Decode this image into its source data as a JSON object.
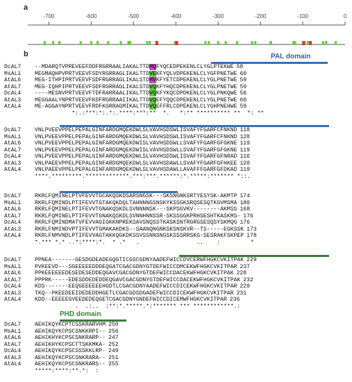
{
  "figure": {
    "panel_a_label": "a",
    "panel_b_label": "b",
    "scale": {
      "ticks": [
        "-700",
        "-600",
        "-500",
        "-400",
        "-300",
        "-200",
        "-100",
        "0"
      ],
      "tick_values": [
        -700,
        -600,
        -500,
        -400,
        -300,
        -200,
        -100,
        0
      ],
      "range": [
        -750,
        0
      ],
      "green_marks": [
        -710,
        -690,
        -675,
        -625,
        -600,
        -585,
        -560,
        -530,
        -512,
        -508,
        -468,
        -462,
        -402,
        -330,
        -322,
        -300,
        -282,
        -255,
        -220,
        -212,
        -176,
        -175,
        -122,
        -118,
        -95,
        -88,
        -52,
        -45,
        -22
      ],
      "red_marks": [
        -445,
        -398,
        -98,
        -82
      ],
      "colors": {
        "green": "#66cc44",
        "red": "#e03030",
        "axis": "#555555"
      }
    },
    "pal_domain_label": "PAL domain",
    "phd_domain_label": "PHD domain",
    "colors": {
      "pal_bar": "#3a6fb5",
      "phd_bar": "#3d7a3a",
      "phd_label": "#2e8b2e",
      "pal_label": "#2f62a8"
    },
    "blocks": [
      {
        "rows": [
          {
            "name": "DcAL7",
            "seq": "--MDARQTVPREVEEFDDFRGRRAALIAKALTTD",
            "hl": "MQ",
            "seq2": "FYQCEDPEKENLCLYGLPTEKWE",
            "num": "58",
            "hltype": "mag"
          },
          {
            "name": "MsAL1",
            "seq": "MEGMAQHPVPRTVEEVFSDYRGRRAGLIKALTTD",
            "hl": "VE",
            "seq2": "KFYQLVDPEKENLCLYGFPNETWE",
            "num": "60",
            "hltype": "grn"
          },
          {
            "name": "AtAL6",
            "seq": "MEG-ITHPIPRTVEEVFSDFRGRRAGLIKALSTD",
            "hl": "MV",
            "seq2": "KFYETCDPEKENLCLYGLPNETWE",
            "num": "59",
            "hltype": "mag"
          },
          {
            "name": "AtAL7",
            "seq": "MEG-IQHPIPRTVEEVFSDFRGRRAGLIKALSTD",
            "hl": "VQ",
            "seq2": "KFYHQCDPEKENLCLYGLPNETWE",
            "num": "59",
            "hltype": "grn"
          },
          {
            "name": "DcAL4",
            "seq": "----MESNVPRTVEEVFTDFRARRAALIKALTTD",
            "hl": "VQ",
            "seq2": "KFYKQCDPDKENLCLYGLPNKQWE",
            "num": "56",
            "hltype": "grn"
          },
          {
            "name": "AtAL3",
            "seq": "MEGGAALYNPRTVEEVFKDFRGRRAAIIKALTTD",
            "hl": "VQ",
            "seq2": "EFYQQCDPEKENLCLYGLPNETWE",
            "num": "60",
            "hltype": "grn"
          },
          {
            "name": "AtAL4",
            "seq": "ME-AGGAYNPRTVEEVFRDFKGRRAGMIKALTTD",
            "hl": "VQ",
            "seq2": "EFFRLCDPEKENLCLYGHPNEHWE",
            "num": "59",
            "hltype": "grn"
          }
        ],
        "consensus": "           *:.:***:*:.*:.****:***:**  *.   *:** ********** **  *: **"
      },
      {
        "rows": [
          {
            "name": "DcAL7",
            "seq": "VNLPVEEVPPELPEPALGINFARDGMQEKDWLSLVAVHSDSWLISVAFYFGARFCFNKND",
            "num": "118"
          },
          {
            "name": "MsAL1",
            "seq": "VNLPVEEVPPELPEPALGINFARDGMQEKDWLSLVAVHSDSWLISVAFYFGARFCFNKND",
            "num": "120"
          },
          {
            "name": "AtAL6",
            "seq": "VNLPVEEVPPELPEPALGINFARDGMQEKDWISLVAVHSDSWLLSVAFYFGARFGFGKNE",
            "num": "119"
          },
          {
            "name": "AtAL7",
            "seq": "VNLPVEEVPPELPEPALGINFARDGMQEKDWISLVAVHSDSWLLSVAFYFGARFGFGKNE",
            "num": "119"
          },
          {
            "name": "DcAL4",
            "seq": "VNLPVEEVPPELPEPALGINFARDGMQEKDWLSLVAVHSDSWLISVAFYFGARFGFNRAD",
            "num": "116"
          },
          {
            "name": "AtAL3",
            "seq": "VNLPAEEVPPELPEPALGINFARDGMQEKDWLSLVAVHSDAWLLSVAFYFGARFGFHKEE",
            "num": "120"
          },
          {
            "name": "AtAL4",
            "seq": "VNLPAEEVPPELPEPALGINFARDGMQEKDWLSLVAVHSDAWLLAVAFFFGARFGFDKAD",
            "num": "119"
          }
        ],
        "consensus": "****.*********.*************.***:***.******:*.*****:******* *::."
      },
      {
        "rows": [
          {
            "name": "DcAL7",
            "seq": "RKRLFQMINELPTVFEVVTGCAKQSKDSARSNGSK---SKSNGNKSRTYESYSK-AKMTP",
            "num": "174"
          },
          {
            "name": "MsAL1",
            "seq": "RKRLFQMINDLPTIFEVVTGTAKQKDQLTAHNNNGSNSKYKSSGKSRQSESQTKGVMSMA",
            "num": "180"
          },
          {
            "name": "AtAL6",
            "seq": "RKRLFQMINELPTIFEVVTGNAKQSKDLSVNNNNSK---SKPSGVKV--------AKMSS",
            "num": "168"
          },
          {
            "name": "AtAL7",
            "seq": "RKRLFQMINELPTIFEVVTGNAKQSKDLSVNNHNNSSR-SKSSGGKPRHSESHTKASKMS-",
            "num": "176"
          },
          {
            "name": "DcAL4",
            "seq": "RKRLFQMINDMATVFEVVAGIGKKNPREKSAVSNQSSTKASKSNTRGRGSESQSYSKMQG",
            "num": "176"
          },
          {
            "name": "AtAL3",
            "seq": "RKRLFNMINDVPTIFEVVTGMAKAKDKS--SAANQNGNKSKSNSKVR--TS-----EGKSSK",
            "num": "173"
          },
          {
            "name": "AtAL4",
            "seq": "RKRLFNMVNDLPTIFEVVAGTAKKQGKDKSSVSSNNSNGSKSSSRRSKG-SESRAKFSKPEP",
            "num": "178"
          }
        ],
        "consensus": "*.*** *.* ..*:****:*.  * .*   .                 ..    :         *"
      },
      {
        "rows": [
          {
            "name": "DcAL7",
            "seq": "PPNEA-------GESDGDEADEGQGTICGSCGDNYAADEFWICCDVCERWFHGKCVKITPAK",
            "num": "229"
          },
          {
            "name": "MsAL1",
            "seq": "PVKEEVD---SGEEEEEDDDEQGATCGACGDNYGTDEFWICCDMCEKWFHGKCVKITPAR",
            "num": "237"
          },
          {
            "name": "AtAL6",
            "seq": "PPKEEEEEEDESEDESEDDEQGAVCGACGDNYGTDEFWICCDACEKWFHGKCVKITPAK",
            "num": "228"
          },
          {
            "name": "AtAL7",
            "seq": "PPPRK-----EDESDDEDEDDEQGAVCGACGDNYGTDEFWICCDACEKWFHGKCVKITPAK",
            "num": "232"
          },
          {
            "name": "DcAL4",
            "seq": "KDS-------EEQGEEEEEEHGDTLCGACGDNYAADEFWICCDICEKWFHGKCVKITPAR",
            "num": "229"
          },
          {
            "name": "AtAL3",
            "seq": "TKQ--PKEEDEEIDEDEDDHGETLCGACGDSDGADEFWICCDICEKWFHGKCVKITPAR",
            "num": "231"
          },
          {
            "name": "AtAL4",
            "seq": "KDD--EEEEEGVEEDEDEQGETCGACGDNYGNDEFWICCDICEMWFHGKCVKITPAR",
            "num": "236"
          }
        ],
        "consensus": "            .  .:..  :**:*.*****.*:******* *** ************.:"
      },
      {
        "rows": [
          {
            "name": "DcAL7",
            "seq": "AEHIKQYKCPTCSSKRARVHM",
            "num": "250"
          },
          {
            "name": "MsAL1",
            "seq": "AEHIKQYKCPSCSNKKRPI--",
            "num": "256"
          },
          {
            "name": "AtAL6",
            "seq": "AEHIKHYKCPSCSNKRARP--",
            "num": "247"
          },
          {
            "name": "AtAL7",
            "seq": "AEHIKHYKCPSCTTSKKMKA-",
            "num": "252"
          },
          {
            "name": "DcAL4",
            "seq": "AEHIKQYKCPSCSSSKKLRP-",
            "num": "249"
          },
          {
            "name": "AtAL3",
            "seq": "AEHIKQYKCPSCSNKRARA--",
            "num": "251"
          },
          {
            "name": "AtAL4",
            "seq": "AEHIKQYKCPSCSNKRARS--",
            "num": "255"
          }
        ],
        "consensus": "*****:****:**.*:  :"
      }
    ]
  }
}
